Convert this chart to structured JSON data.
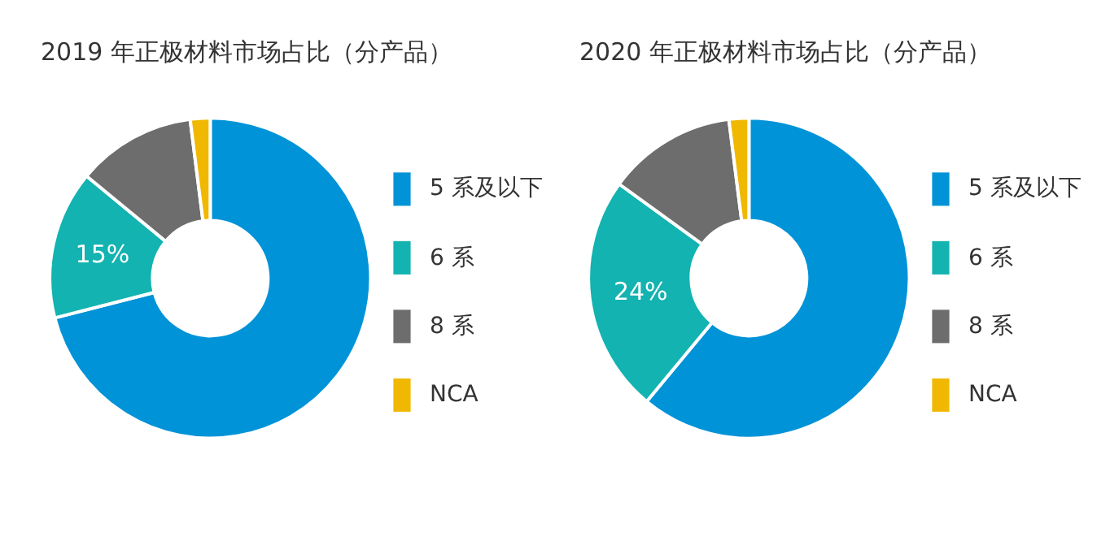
{
  "chart_data": [
    {
      "type": "donut",
      "title": "2019 年正极材料市场占比（分产品）",
      "categories": [
        "5 系及以下",
        "6 系",
        "8 系",
        "NCA"
      ],
      "values": [
        71,
        15,
        12,
        2
      ],
      "colors": [
        "#0093d8",
        "#12b3b0",
        "#6d6d6d",
        "#f0b800"
      ],
      "value_labels": [
        null,
        "15%",
        null,
        null
      ],
      "legend": "right"
    },
    {
      "type": "donut",
      "title": "2020 年正极材料市场占比（分产品）",
      "categories": [
        "5 系及以下",
        "6 系",
        "8 系",
        "NCA"
      ],
      "values": [
        61,
        24,
        13,
        2
      ],
      "colors": [
        "#0093d8",
        "#12b3b0",
        "#6d6d6d",
        "#f0b800"
      ],
      "value_labels": [
        null,
        "24%",
        null,
        null
      ],
      "legend": "right"
    }
  ]
}
